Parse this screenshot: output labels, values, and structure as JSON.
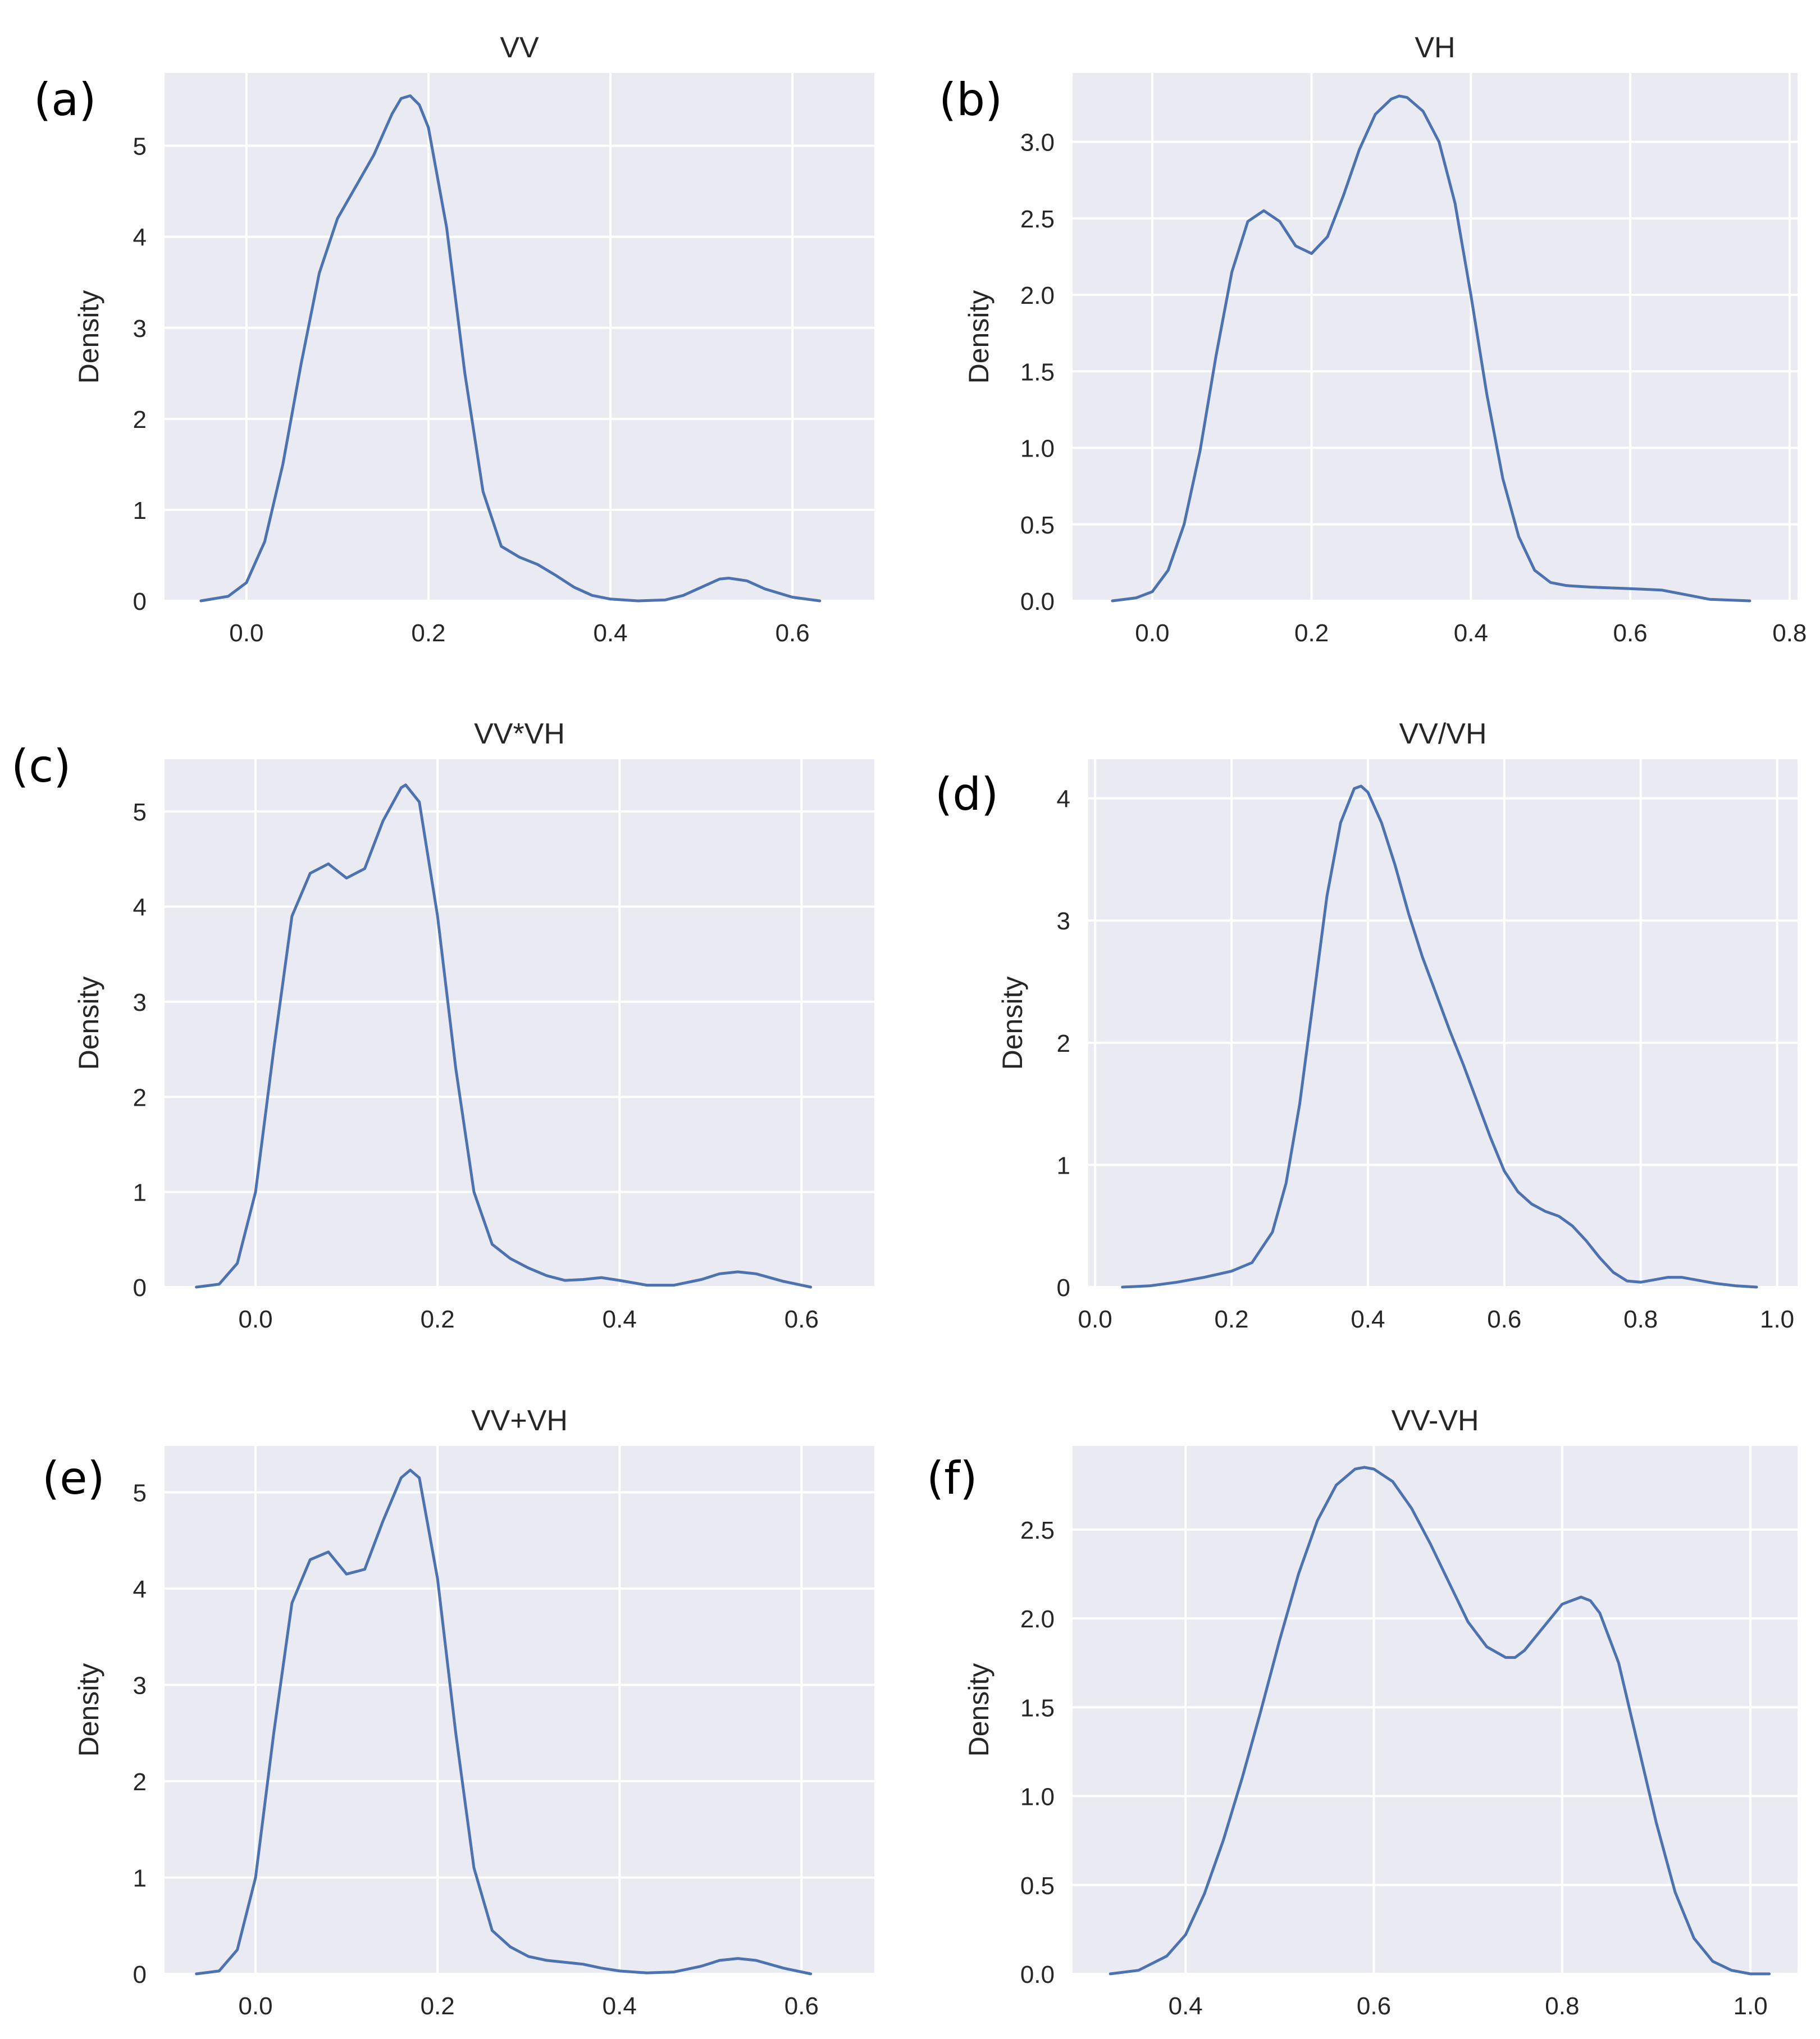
{
  "chart_data": [
    {
      "type": "line",
      "panel_label": "(a)",
      "title": "VV",
      "xlabel": "",
      "ylabel": "Density",
      "xlim": [
        -0.09,
        0.69
      ],
      "ylim": [
        0,
        5.8
      ],
      "xticks": [
        0.0,
        0.2,
        0.4,
        0.6
      ],
      "xtick_labels": [
        "0.0",
        "0.2",
        "0.4",
        "0.6"
      ],
      "yticks": [
        0,
        1,
        2,
        3,
        4,
        5
      ],
      "ytick_labels": [
        "0",
        "1",
        "2",
        "3",
        "4",
        "5"
      ],
      "grid": true,
      "series": [
        {
          "name": "VV",
          "x": [
            -0.05,
            -0.02,
            0.0,
            0.02,
            0.04,
            0.06,
            0.08,
            0.1,
            0.12,
            0.14,
            0.16,
            0.17,
            0.18,
            0.19,
            0.2,
            0.22,
            0.24,
            0.26,
            0.28,
            0.3,
            0.32,
            0.34,
            0.36,
            0.38,
            0.4,
            0.43,
            0.46,
            0.48,
            0.5,
            0.52,
            0.53,
            0.55,
            0.57,
            0.6,
            0.63
          ],
          "y": [
            0.0,
            0.05,
            0.2,
            0.65,
            1.5,
            2.6,
            3.6,
            4.2,
            4.55,
            4.9,
            5.35,
            5.52,
            5.55,
            5.45,
            5.2,
            4.1,
            2.5,
            1.2,
            0.6,
            0.48,
            0.4,
            0.28,
            0.15,
            0.06,
            0.02,
            0.0,
            0.01,
            0.06,
            0.15,
            0.24,
            0.25,
            0.22,
            0.13,
            0.04,
            0.0
          ]
        }
      ]
    },
    {
      "type": "line",
      "panel_label": "(b)",
      "title": "VH",
      "xlabel": "",
      "ylabel": "Density",
      "xlim": [
        -0.1,
        0.81
      ],
      "ylim": [
        0,
        3.45
      ],
      "xticks": [
        0.0,
        0.2,
        0.4,
        0.6,
        0.8
      ],
      "xtick_labels": [
        "0.0",
        "0.2",
        "0.4",
        "0.6",
        "0.8"
      ],
      "yticks": [
        0.0,
        0.5,
        1.0,
        1.5,
        2.0,
        2.5,
        3.0
      ],
      "ytick_labels": [
        "0.0",
        "0.5",
        "1.0",
        "1.5",
        "2.0",
        "2.5",
        "3.0"
      ],
      "grid": true,
      "series": [
        {
          "name": "VH",
          "x": [
            -0.05,
            -0.02,
            0.0,
            0.02,
            0.04,
            0.06,
            0.08,
            0.1,
            0.12,
            0.14,
            0.16,
            0.18,
            0.2,
            0.22,
            0.24,
            0.26,
            0.28,
            0.3,
            0.31,
            0.32,
            0.34,
            0.36,
            0.38,
            0.4,
            0.42,
            0.44,
            0.46,
            0.48,
            0.5,
            0.52,
            0.55,
            0.6,
            0.64,
            0.67,
            0.7,
            0.75
          ],
          "y": [
            0.0,
            0.02,
            0.06,
            0.2,
            0.5,
            0.98,
            1.6,
            2.15,
            2.48,
            2.55,
            2.48,
            2.32,
            2.27,
            2.38,
            2.65,
            2.95,
            3.18,
            3.28,
            3.3,
            3.29,
            3.2,
            3.0,
            2.6,
            2.0,
            1.35,
            0.8,
            0.42,
            0.2,
            0.12,
            0.1,
            0.09,
            0.08,
            0.07,
            0.04,
            0.01,
            0.0
          ]
        }
      ]
    },
    {
      "type": "line",
      "panel_label": "(c)",
      "title": "VV*VH",
      "xlabel": "",
      "ylabel": "Density",
      "xlim": [
        -0.1,
        0.68
      ],
      "ylim": [
        0,
        5.55
      ],
      "xticks": [
        0.0,
        0.2,
        0.4,
        0.6
      ],
      "xtick_labels": [
        "0.0",
        "0.2",
        "0.4",
        "0.6"
      ],
      "yticks": [
        0,
        1,
        2,
        3,
        4,
        5
      ],
      "ytick_labels": [
        "0",
        "1",
        "2",
        "3",
        "4",
        "5"
      ],
      "grid": true,
      "series": [
        {
          "name": "VV*VH",
          "x": [
            -0.065,
            -0.04,
            -0.02,
            0.0,
            0.02,
            0.04,
            0.06,
            0.08,
            0.1,
            0.12,
            0.14,
            0.16,
            0.165,
            0.18,
            0.2,
            0.22,
            0.24,
            0.26,
            0.28,
            0.3,
            0.32,
            0.34,
            0.36,
            0.38,
            0.4,
            0.43,
            0.46,
            0.49,
            0.51,
            0.53,
            0.55,
            0.58,
            0.61
          ],
          "y": [
            0.0,
            0.03,
            0.25,
            1.0,
            2.5,
            3.9,
            4.35,
            4.45,
            4.3,
            4.4,
            4.9,
            5.25,
            5.28,
            5.1,
            3.9,
            2.3,
            1.0,
            0.45,
            0.3,
            0.2,
            0.12,
            0.07,
            0.08,
            0.1,
            0.07,
            0.02,
            0.02,
            0.08,
            0.14,
            0.16,
            0.14,
            0.06,
            0.0
          ]
        }
      ]
    },
    {
      "type": "line",
      "panel_label": "(d)",
      "title": "VV/VH",
      "xlabel": "",
      "ylabel": "Density",
      "xlim": [
        -0.01,
        1.03
      ],
      "ylim": [
        0,
        4.32
      ],
      "xticks": [
        0.0,
        0.2,
        0.4,
        0.6,
        0.8,
        1.0
      ],
      "xtick_labels": [
        "0.0",
        "0.2",
        "0.4",
        "0.6",
        "0.8",
        "1.0"
      ],
      "yticks": [
        0,
        1,
        2,
        3,
        4
      ],
      "ytick_labels": [
        "0",
        "1",
        "2",
        "3",
        "4"
      ],
      "grid": true,
      "series": [
        {
          "name": "VV/VH",
          "x": [
            0.04,
            0.08,
            0.12,
            0.16,
            0.2,
            0.23,
            0.26,
            0.28,
            0.3,
            0.32,
            0.34,
            0.36,
            0.38,
            0.39,
            0.4,
            0.42,
            0.44,
            0.46,
            0.48,
            0.5,
            0.52,
            0.54,
            0.56,
            0.58,
            0.6,
            0.62,
            0.64,
            0.66,
            0.68,
            0.7,
            0.72,
            0.74,
            0.76,
            0.78,
            0.8,
            0.82,
            0.84,
            0.86,
            0.88,
            0.91,
            0.94,
            0.97
          ],
          "y": [
            0.0,
            0.01,
            0.04,
            0.08,
            0.13,
            0.2,
            0.45,
            0.85,
            1.5,
            2.35,
            3.2,
            3.8,
            4.08,
            4.1,
            4.05,
            3.8,
            3.45,
            3.05,
            2.7,
            2.4,
            2.1,
            1.82,
            1.52,
            1.22,
            0.95,
            0.78,
            0.68,
            0.62,
            0.58,
            0.5,
            0.38,
            0.24,
            0.12,
            0.05,
            0.04,
            0.06,
            0.08,
            0.08,
            0.06,
            0.03,
            0.01,
            0.0
          ]
        }
      ]
    },
    {
      "type": "line",
      "panel_label": "(e)",
      "title": "VV+VH",
      "xlabel": "",
      "ylabel": "Density",
      "xlim": [
        -0.1,
        0.68
      ],
      "ylim": [
        0,
        5.48
      ],
      "xticks": [
        0.0,
        0.2,
        0.4,
        0.6
      ],
      "xtick_labels": [
        "0.0",
        "0.2",
        "0.4",
        "0.6"
      ],
      "yticks": [
        0,
        1,
        2,
        3,
        4,
        5
      ],
      "ytick_labels": [
        "0",
        "1",
        "2",
        "3",
        "4",
        "5"
      ],
      "grid": true,
      "series": [
        {
          "name": "VV+VH",
          "x": [
            -0.065,
            -0.04,
            -0.02,
            0.0,
            0.02,
            0.04,
            0.06,
            0.08,
            0.1,
            0.12,
            0.14,
            0.16,
            0.17,
            0.18,
            0.2,
            0.22,
            0.24,
            0.26,
            0.28,
            0.3,
            0.32,
            0.34,
            0.36,
            0.38,
            0.4,
            0.43,
            0.46,
            0.49,
            0.51,
            0.53,
            0.55,
            0.58,
            0.61
          ],
          "y": [
            0.0,
            0.03,
            0.25,
            1.0,
            2.5,
            3.85,
            4.3,
            4.38,
            4.15,
            4.2,
            4.7,
            5.15,
            5.23,
            5.15,
            4.1,
            2.5,
            1.1,
            0.45,
            0.28,
            0.18,
            0.14,
            0.12,
            0.1,
            0.06,
            0.03,
            0.01,
            0.02,
            0.08,
            0.14,
            0.16,
            0.14,
            0.06,
            0.0
          ]
        }
      ]
    },
    {
      "type": "line",
      "panel_label": "(f)",
      "title": "VV-VH",
      "xlabel": "",
      "ylabel": "Density",
      "xlim": [
        0.28,
        1.05
      ],
      "ylim": [
        0,
        2.97
      ],
      "xticks": [
        0.4,
        0.6,
        0.8,
        1.0
      ],
      "xtick_labels": [
        "0.4",
        "0.6",
        "0.8",
        "1.0"
      ],
      "yticks": [
        0.0,
        0.5,
        1.0,
        1.5,
        2.0,
        2.5
      ],
      "ytick_labels": [
        "0.0",
        "0.5",
        "1.0",
        "1.5",
        "2.0",
        "2.5"
      ],
      "grid": true,
      "series": [
        {
          "name": "VV-VH",
          "x": [
            0.32,
            0.35,
            0.38,
            0.4,
            0.42,
            0.44,
            0.46,
            0.48,
            0.5,
            0.52,
            0.54,
            0.56,
            0.58,
            0.59,
            0.6,
            0.62,
            0.64,
            0.66,
            0.68,
            0.7,
            0.72,
            0.74,
            0.75,
            0.76,
            0.78,
            0.8,
            0.82,
            0.83,
            0.84,
            0.86,
            0.88,
            0.9,
            0.92,
            0.94,
            0.96,
            0.98,
            1.0,
            1.02
          ],
          "y": [
            0.0,
            0.02,
            0.1,
            0.22,
            0.45,
            0.75,
            1.1,
            1.48,
            1.88,
            2.25,
            2.55,
            2.75,
            2.84,
            2.85,
            2.84,
            2.77,
            2.62,
            2.42,
            2.2,
            1.98,
            1.84,
            1.78,
            1.78,
            1.82,
            1.95,
            2.08,
            2.12,
            2.1,
            2.03,
            1.75,
            1.3,
            0.85,
            0.46,
            0.2,
            0.07,
            0.02,
            0.0,
            0.0
          ]
        }
      ]
    }
  ]
}
